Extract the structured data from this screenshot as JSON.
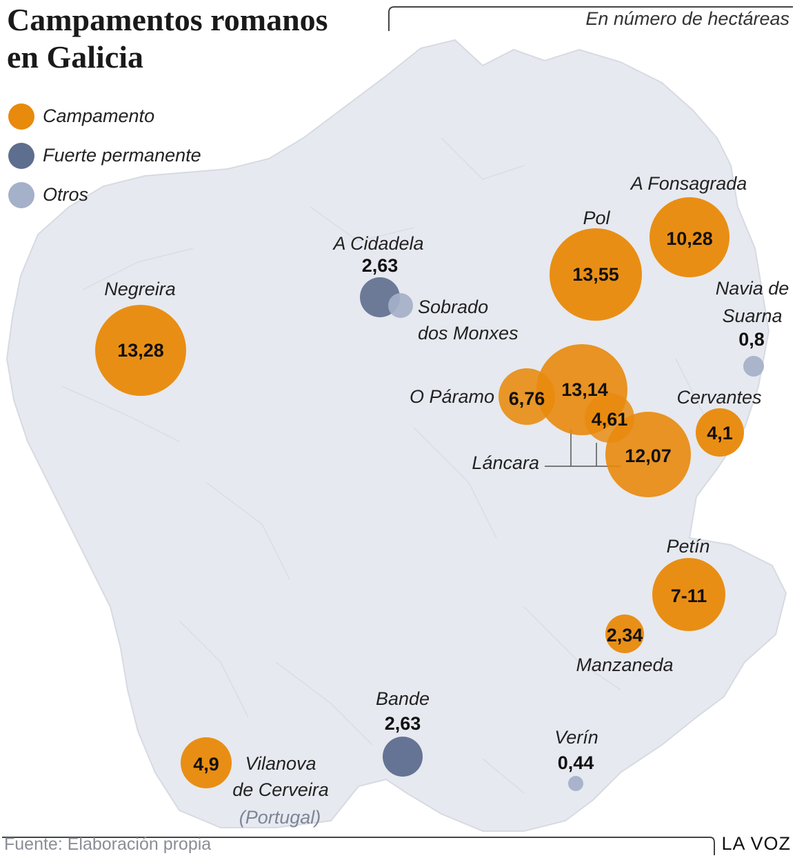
{
  "title_lines": [
    "Campamentos romanos",
    "en Galicia"
  ],
  "subtitle": "En número de hectáreas",
  "legend": [
    {
      "label": "Campamento",
      "color": "#e88a0c"
    },
    {
      "label": "Fuerte permanente",
      "color": "#5e6e8e"
    },
    {
      "label": "Otros",
      "color": "#a5b0c9"
    }
  ],
  "colors": {
    "campamento": "#e88a0c",
    "fuerte": "#5e6e8e",
    "otros": "#a5b0c9",
    "land": "#e6e9ef",
    "leader": "#555555"
  },
  "sites": {
    "negreira": {
      "name": "Negreira",
      "value": "13,28",
      "type": "campamento"
    },
    "cidadela": {
      "name": "A Cidadela",
      "value": "2,63",
      "type": "fuerte"
    },
    "sobrado": {
      "name_lines": [
        "Sobrado",
        "dos Monxes"
      ],
      "type": "otros"
    },
    "pol": {
      "name": "Pol",
      "value": "13,55",
      "type": "campamento"
    },
    "fonsagrada": {
      "name": "A Fonsagrada",
      "value": "10,28",
      "type": "campamento"
    },
    "navia": {
      "name_lines": [
        "Navia de",
        "Suarna"
      ],
      "value": "0,8",
      "type": "otros"
    },
    "paramo": {
      "name": "O Páramo",
      "value": "6,76",
      "type": "campamento"
    },
    "lancara_a": {
      "value": "13,14",
      "type": "campamento"
    },
    "lancara_b": {
      "value": "4,61",
      "type": "campamento"
    },
    "lancara_c": {
      "value": "12,07",
      "type": "campamento"
    },
    "lancara": {
      "name": "Láncara"
    },
    "cervantes": {
      "name": "Cervantes",
      "value": "4,1",
      "type": "campamento"
    },
    "petin": {
      "name": "Petín",
      "value": "7-11",
      "type": "campamento"
    },
    "manzaneda": {
      "name": "Manzaneda",
      "value": "2,34",
      "type": "campamento"
    },
    "bande": {
      "name": "Bande",
      "value": "2,63",
      "type": "fuerte"
    },
    "verin": {
      "name": "Verín",
      "value": "0,44",
      "type": "otros"
    },
    "vilanova": {
      "name_lines": [
        "Vilanova",
        "de Cerveira"
      ],
      "country": "(Portugal)",
      "value": "4,9",
      "type": "campamento"
    }
  },
  "footer": {
    "source": "Fuente: Elaboración propia",
    "brand": "LA VOZ"
  }
}
